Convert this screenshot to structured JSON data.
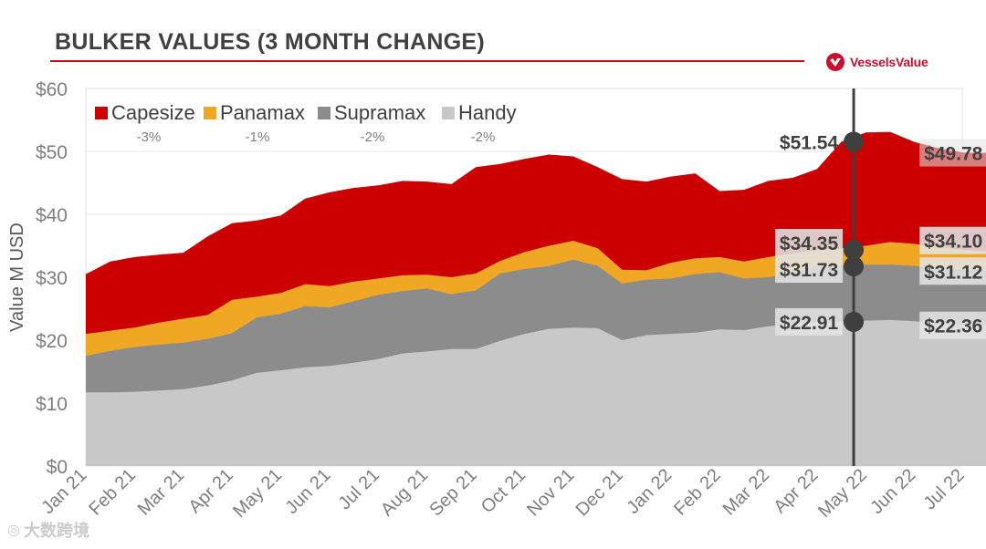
{
  "header": {
    "title": "BULKER VALUES (3 MONTH CHANGE)"
  },
  "brand": {
    "name": "VesselsValue",
    "icon": "vesselsvalue-logo-icon",
    "color": "#c8102e"
  },
  "watermark": {
    "text": "大数跨境",
    "icon": "watermark-logo-icon"
  },
  "colors": {
    "Capesize": "#cc0000",
    "Panamax": "#f0a824",
    "Supramax": "#8c8c8c",
    "Handy": "#c8c8c8",
    "marker": "#3f3f3f",
    "label_bg": "#e3e3e3"
  },
  "chart_data": {
    "type": "area",
    "stacked": true,
    "title": "BULKER VALUES (3 MONTH CHANGE)",
    "ylabel": "Value M USD",
    "xlabel": "",
    "ylim": [
      0,
      60
    ],
    "yticks": [
      "$0",
      "$10",
      "$20",
      "$30",
      "$40",
      "$50",
      "$60"
    ],
    "ytick_values": [
      0,
      10,
      20,
      30,
      40,
      50,
      60
    ],
    "categories": [
      "Jan 21",
      "Feb 21",
      "Mar 21",
      "Apr 21",
      "May 21",
      "Jun 21",
      "Jul 21",
      "Aug 21",
      "Sep 21",
      "Oct 21",
      "Nov 21",
      "Dec 21",
      "Jan 22",
      "Feb 22",
      "Mar 22",
      "Apr 22",
      "May 22",
      "Jun 22",
      "Jul 22"
    ],
    "x_range": [
      0,
      18.75
    ],
    "legend": [
      {
        "name": "Capesize",
        "change": "-3%"
      },
      {
        "name": "Panamax",
        "change": "-1%"
      },
      {
        "name": "Supramax",
        "change": "-2%"
      },
      {
        "name": "Handy",
        "change": "-2%"
      }
    ],
    "legend_position": "top-left",
    "series": [
      {
        "name": "Handy",
        "x": [
          0,
          0.5,
          1,
          1.5,
          2,
          2.5,
          3,
          3.5,
          4,
          4.5,
          5,
          5.5,
          6,
          6.5,
          7,
          7.5,
          8,
          8.5,
          9,
          9.5,
          10,
          10.5,
          11,
          11.5,
          12,
          12.5,
          13,
          13.5,
          14,
          14.5,
          15,
          15.5,
          16,
          16.5,
          17,
          17.5,
          18,
          18.5,
          18.75
        ],
        "values": [
          11.7,
          11.7,
          11.8,
          12.0,
          12.2,
          12.8,
          13.6,
          14.8,
          15.2,
          15.7,
          15.9,
          16.4,
          17.0,
          17.9,
          18.2,
          18.6,
          18.6,
          19.9,
          21.0,
          21.8,
          22.0,
          21.9,
          20.0,
          20.8,
          21.0,
          21.2,
          21.7,
          21.6,
          22.2,
          22.6,
          22.9,
          23.0,
          23.1,
          23.2,
          23.0,
          22.7,
          22.4,
          22.36,
          22.36
        ]
      },
      {
        "name": "Supramax",
        "x": [
          0,
          0.5,
          1,
          1.5,
          2,
          2.5,
          3,
          3.5,
          4,
          4.5,
          5,
          5.5,
          6,
          6.5,
          7,
          7.5,
          8,
          8.5,
          9,
          9.5,
          10,
          10.5,
          11,
          11.5,
          12,
          12.5,
          13,
          13.5,
          14,
          14.5,
          15,
          15.5,
          16,
          16.5,
          17,
          17.5,
          18,
          18.5,
          18.75
        ],
        "values": [
          17.5,
          18.3,
          18.9,
          19.3,
          19.6,
          20.2,
          21.1,
          23.6,
          24.2,
          25.4,
          25.2,
          26.2,
          27.2,
          27.8,
          28.2,
          27.3,
          27.9,
          30.6,
          31.3,
          31.8,
          32.8,
          31.8,
          29.0,
          29.6,
          29.8,
          30.5,
          30.8,
          29.8,
          30.0,
          30.6,
          31.73,
          31.9,
          32.0,
          32.0,
          31.8,
          31.5,
          31.2,
          31.12,
          31.12
        ]
      },
      {
        "name": "Panamax",
        "x": [
          0,
          0.5,
          1,
          1.5,
          2,
          2.5,
          3,
          3.5,
          4,
          4.5,
          5,
          5.5,
          6,
          6.5,
          7,
          7.5,
          8,
          8.5,
          9,
          9.5,
          10,
          10.5,
          11,
          11.5,
          12,
          12.5,
          13,
          13.5,
          14,
          14.5,
          15,
          15.5,
          16,
          16.5,
          17,
          17.5,
          18,
          18.5,
          18.75
        ],
        "values": [
          21.0,
          21.5,
          22.0,
          22.8,
          23.4,
          24.0,
          26.4,
          26.9,
          27.5,
          28.9,
          28.6,
          29.3,
          29.8,
          30.3,
          30.4,
          30.0,
          30.6,
          32.6,
          34.0,
          35.0,
          35.8,
          34.6,
          31.2,
          31.1,
          32.3,
          33.0,
          33.2,
          32.5,
          33.2,
          33.8,
          34.35,
          34.6,
          35.0,
          35.6,
          35.3,
          34.8,
          34.3,
          34.1,
          34.1
        ]
      },
      {
        "name": "Capesize",
        "x": [
          0,
          0.5,
          1,
          1.5,
          2,
          2.5,
          3,
          3.5,
          4,
          4.5,
          5,
          5.5,
          6,
          6.5,
          7,
          7.5,
          8,
          8.5,
          9,
          9.5,
          10,
          10.5,
          11,
          11.5,
          12,
          12.5,
          13,
          13.5,
          14,
          14.5,
          15,
          15.5,
          16,
          16.5,
          17,
          17.5,
          18,
          18.5,
          18.75
        ],
        "values": [
          30.5,
          32.5,
          33.2,
          33.6,
          33.9,
          36.5,
          38.6,
          39.0,
          39.8,
          42.5,
          43.5,
          44.2,
          44.6,
          45.3,
          45.2,
          44.8,
          47.5,
          48.0,
          48.8,
          49.5,
          49.2,
          47.5,
          45.6,
          45.2,
          46.0,
          46.5,
          43.7,
          43.9,
          45.3,
          45.8,
          47.2,
          51.54,
          53.0,
          53.1,
          51.5,
          50.5,
          49.8,
          49.78,
          49.78
        ]
      }
    ],
    "markers": [
      {
        "x": 15.75,
        "values": [
          51.54,
          34.35,
          31.73,
          22.91
        ],
        "labels": [
          "$51.54",
          "$34.35",
          "$31.73",
          "$22.91"
        ]
      },
      {
        "x": 18.75,
        "values": [
          49.78,
          34.1,
          31.12,
          22.36
        ],
        "labels": [
          "$49.78",
          "$34.10",
          "$31.12",
          "$22.36"
        ]
      }
    ]
  }
}
